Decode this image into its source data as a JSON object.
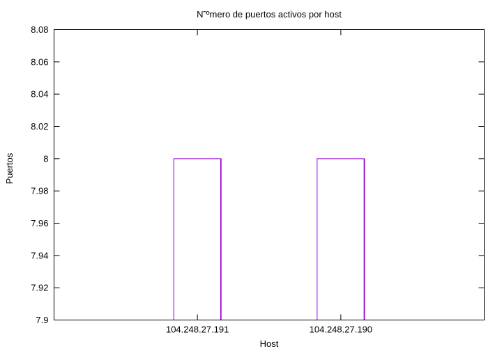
{
  "chart_data": {
    "type": "bar",
    "title": "N˜ºmero de puertos activos por host",
    "xlabel": "Host",
    "ylabel": "Puertos",
    "categories": [
      "104.248.27.191",
      "104.248.27.190"
    ],
    "values": [
      8,
      8
    ],
    "ylim": [
      7.9,
      8.08
    ],
    "yticks": [
      "7.9",
      "7.92",
      "7.94",
      "7.96",
      "7.98",
      "8",
      "8.02",
      "8.04",
      "8.06",
      "8.08"
    ],
    "grid": false,
    "bar_style": "outline",
    "colors": {
      "bar": "#9400d3",
      "axis": "#000000"
    }
  }
}
